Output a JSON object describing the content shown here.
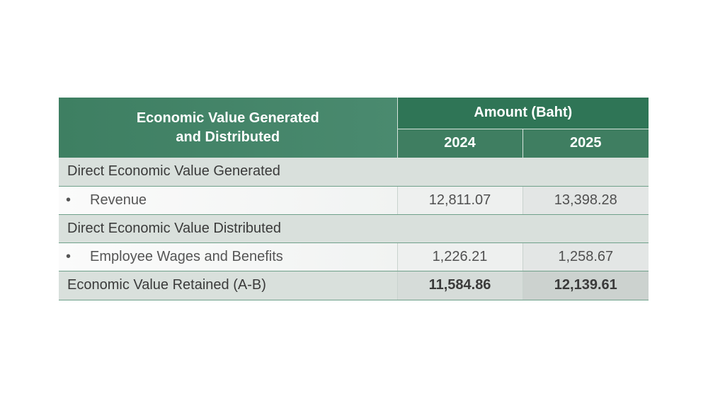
{
  "table": {
    "header": {
      "title_line1": "Economic Value Generated",
      "title_line2": "and Distributed",
      "amount_label": "Amount (Baht)",
      "years": [
        "2024",
        "2025"
      ]
    },
    "sections": [
      {
        "label": "Direct Economic Value Generated",
        "items": [
          {
            "bullet": "•",
            "label": "Revenue",
            "values": [
              "12,811.07",
              "13,398.28"
            ]
          }
        ]
      },
      {
        "label": "Direct Economic Value Distributed",
        "items": [
          {
            "bullet": "•",
            "label": "Employee Wages and Benefits",
            "values": [
              "1,226.21",
              "1,258.67"
            ]
          }
        ]
      }
    ],
    "total": {
      "label": "Economic Value Retained (A-B)",
      "values": [
        "11,584.86",
        "12,139.61"
      ]
    }
  },
  "colors": {
    "header_green": "#2f7556",
    "header_green_light": "#4a8a6f",
    "section_bg": "#d9e0dc",
    "rule_green": "#6fa08a"
  }
}
